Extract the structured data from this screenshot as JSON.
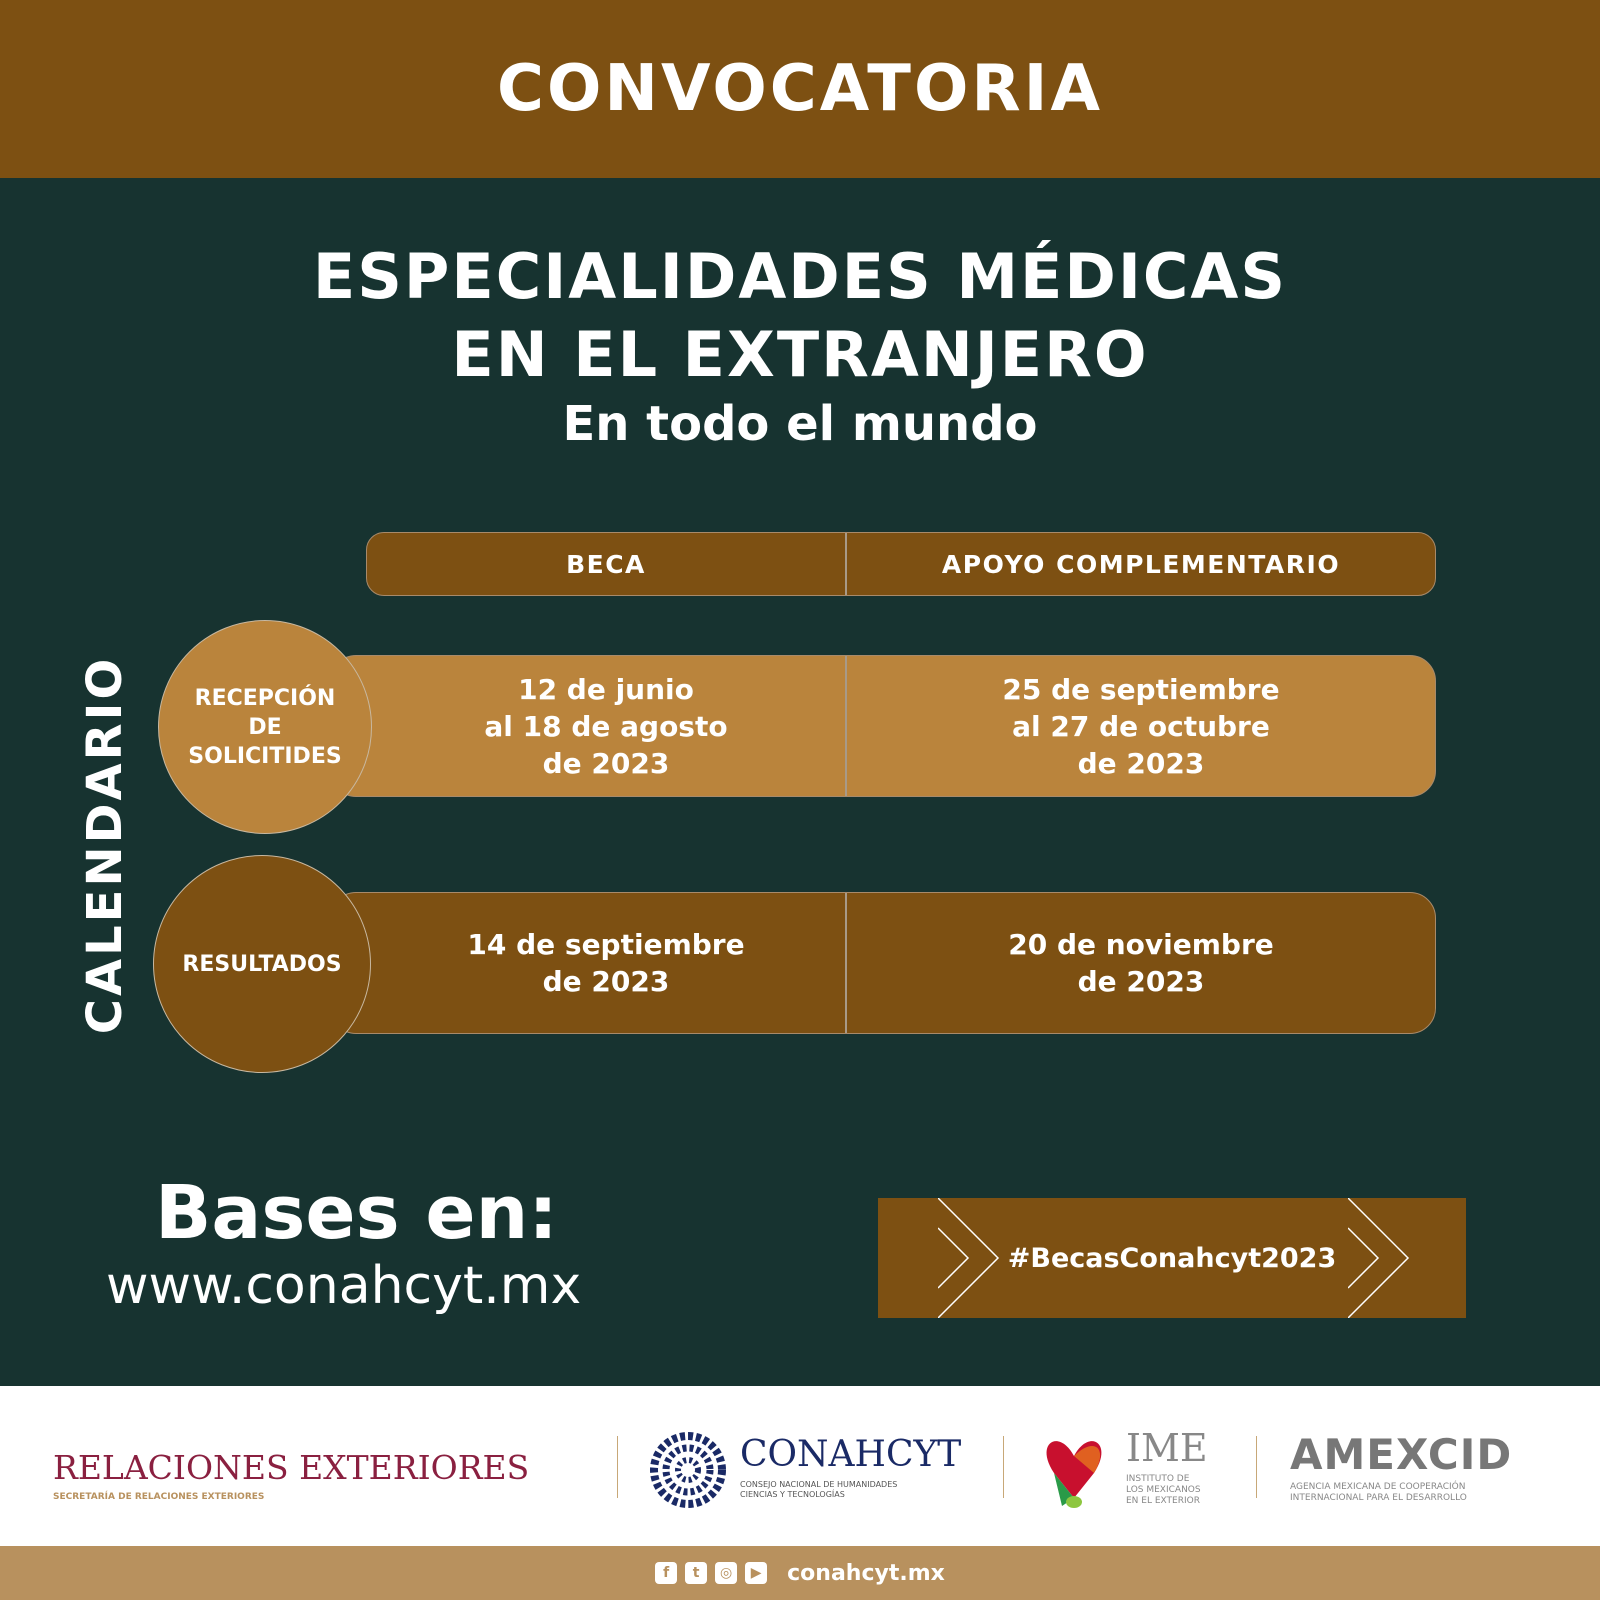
{
  "header": {
    "title": "CONVOCATORIA"
  },
  "title": {
    "line1": "ESPECIALIDADES MÉDICAS",
    "line2": "EN EL EXTRANJERO",
    "subtitle": "En todo el mundo"
  },
  "calendar": {
    "label": "CALENDARIO",
    "columns": [
      "BECA",
      "APOYO COMPLEMENTARIO"
    ],
    "rows": [
      {
        "label": "RECEPCIÓN\nDE\nSOLICITIDES",
        "beca": "12 de junio\nal 18 de agosto\nde 2023",
        "apoyo": "25 de septiembre\nal 27 de octubre\nde 2023"
      },
      {
        "label": "RESULTADOS",
        "beca": "14 de septiembre\nde 2023",
        "apoyo": "20 de noviembre\nde 2023"
      }
    ]
  },
  "bases": {
    "label": "Bases en:",
    "url": "www.conahcyt.mx",
    "hashtag": "#BecasConahcyt2023"
  },
  "logos": {
    "sre": {
      "name": "RELACIONES EXTERIORES",
      "sub": "SECRETARÍA DE RELACIONES EXTERIORES"
    },
    "conahcyt": {
      "name": "CONAHCYT",
      "sub1": "CONSEJO NACIONAL DE HUMANIDADES",
      "sub2": "CIENCIAS Y TECNOLOGÍAS"
    },
    "ime": {
      "name": "IME",
      "sub1": "INSTITUTO DE",
      "sub2": "LOS MEXICANOS",
      "sub3": "EN EL EXTERIOR"
    },
    "amexcid": {
      "name": "AMEXCID",
      "sub1": "AGENCIA MEXICANA DE COOPERACIÓN",
      "sub2": "INTERNACIONAL PARA EL DESARROLLO"
    }
  },
  "footer": {
    "site": "conahcyt.mx",
    "icons": [
      "facebook-icon",
      "twitter-icon",
      "instagram-icon",
      "youtube-icon"
    ]
  },
  "colors": {
    "brown": "#7d5012",
    "light_brown": "#ba843c",
    "green": "#173330",
    "footer": "#b8915e"
  }
}
